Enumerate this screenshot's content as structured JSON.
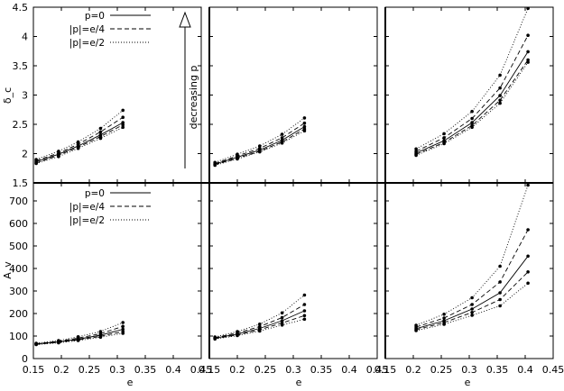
{
  "chart_data": {
    "type": "line",
    "layout": "2x3 panel grid sharing axes",
    "xlabel": "e",
    "ylabels": [
      "δ_c",
      "A_v"
    ],
    "xlim": [
      0.15,
      0.45
    ],
    "xticks": [
      "0.15",
      "0.2",
      "0.25",
      "0.3",
      "0.35",
      "0.4",
      "0.45"
    ],
    "row_ylims": [
      [
        1.5,
        4.5
      ],
      [
        0,
        780
      ]
    ],
    "row_yticks": [
      [
        "1.5",
        "2",
        "2.5",
        "3",
        "3.5",
        "4",
        "4.5"
      ],
      [
        "0",
        "100",
        "200",
        "300",
        "400",
        "500",
        "600",
        "700"
      ]
    ],
    "legend": {
      "placement": "top-left",
      "entries": [
        {
          "label": "p=0",
          "dash": "solid"
        },
        {
          "label": "|p|=e/4",
          "dash": "dashed"
        },
        {
          "label": "|p|=e/2",
          "dash": "dotted"
        }
      ]
    },
    "annotation": {
      "text": "decreasing p",
      "arrow": "up"
    },
    "line_color": "#000000",
    "panels": [
      {
        "row": 0,
        "col": 0,
        "x": [
          0.155,
          0.195,
          0.23,
          0.27,
          0.31
        ],
        "series": [
          {
            "values": [
              1.9,
              2.04,
              2.2,
              2.43,
              2.74
            ],
            "dash": "dotted"
          },
          {
            "values": [
              1.88,
              2.01,
              2.16,
              2.37,
              2.62
            ],
            "dash": "dashed"
          },
          {
            "values": [
              1.86,
              1.99,
              2.13,
              2.32,
              2.53
            ],
            "dash": "solid"
          },
          {
            "values": [
              1.84,
              1.97,
              2.11,
              2.29,
              2.49
            ],
            "dash": "dashed"
          },
          {
            "values": [
              1.83,
              1.95,
              2.09,
              2.26,
              2.45
            ],
            "dash": "dotted"
          }
        ]
      },
      {
        "row": 0,
        "col": 1,
        "x": [
          0.16,
          0.2,
          0.24,
          0.28,
          0.32
        ],
        "series": [
          {
            "values": [
              1.85,
              1.99,
              2.13,
              2.33,
              2.61
            ],
            "dash": "dotted"
          },
          {
            "values": [
              1.83,
              1.96,
              2.09,
              2.27,
              2.52
            ],
            "dash": "dashed"
          },
          {
            "values": [
              1.82,
              1.94,
              2.06,
              2.23,
              2.46
            ],
            "dash": "solid"
          },
          {
            "values": [
              1.81,
              1.92,
              2.04,
              2.2,
              2.42
            ],
            "dash": "dashed"
          },
          {
            "values": [
              1.8,
              1.91,
              2.03,
              2.18,
              2.39
            ],
            "dash": "dotted"
          }
        ]
      },
      {
        "row": 0,
        "col": 2,
        "x": [
          0.205,
          0.255,
          0.305,
          0.355,
          0.405
        ],
        "series": [
          {
            "values": [
              2.08,
              2.34,
              2.72,
              3.34,
              4.48
            ],
            "dash": "dotted"
          },
          {
            "values": [
              2.04,
              2.27,
              2.6,
              3.12,
              4.02
            ],
            "dash": "dashed"
          },
          {
            "values": [
              2.01,
              2.22,
              2.53,
              2.99,
              3.74
            ],
            "dash": "solid"
          },
          {
            "values": [
              1.99,
              2.19,
              2.48,
              2.91,
              3.6
            ],
            "dash": "dashed"
          },
          {
            "values": [
              1.97,
              2.17,
              2.45,
              2.86,
              3.56
            ],
            "dash": "dotted"
          }
        ]
      },
      {
        "row": 1,
        "col": 0,
        "x": [
          0.155,
          0.195,
          0.23,
          0.27,
          0.31
        ],
        "series": [
          {
            "values": [
              68,
              80,
              97,
              120,
              160
            ],
            "dash": "dotted"
          },
          {
            "values": [
              66,
              77,
              91,
              111,
              143
            ],
            "dash": "dashed"
          },
          {
            "values": [
              65,
              74,
              86,
              104,
              130
            ],
            "dash": "solid"
          },
          {
            "values": [
              63,
              72,
              83,
              99,
              120
            ],
            "dash": "dashed"
          },
          {
            "values": [
              62,
              70,
              80,
              95,
              112
            ],
            "dash": "dotted"
          }
        ]
      },
      {
        "row": 1,
        "col": 1,
        "x": [
          0.16,
          0.2,
          0.24,
          0.28,
          0.32
        ],
        "series": [
          {
            "values": [
              96,
              120,
              153,
              203,
              282
            ],
            "dash": "dotted"
          },
          {
            "values": [
              93,
              114,
              142,
              182,
              240
            ],
            "dash": "dashed"
          },
          {
            "values": [
              91,
              109,
              134,
              168,
              212
            ],
            "dash": "solid"
          },
          {
            "values": [
              89,
              105,
              128,
              158,
              191
            ],
            "dash": "dashed"
          },
          {
            "values": [
              87,
              102,
              122,
              149,
              175
            ],
            "dash": "dotted"
          }
        ]
      },
      {
        "row": 1,
        "col": 2,
        "x": [
          0.205,
          0.255,
          0.305,
          0.355,
          0.405
        ],
        "series": [
          {
            "values": [
              148,
              197,
              270,
              410,
              770
            ],
            "dash": "dotted"
          },
          {
            "values": [
              140,
              180,
              240,
              340,
              572
            ],
            "dash": "dashed"
          },
          {
            "values": [
              133,
              168,
              220,
              292,
              455
            ],
            "dash": "solid"
          },
          {
            "values": [
              128,
              160,
              205,
              262,
              385
            ],
            "dash": "dashed"
          },
          {
            "values": [
              124,
              152,
              192,
              234,
              335
            ],
            "dash": "dotted"
          }
        ]
      }
    ]
  }
}
